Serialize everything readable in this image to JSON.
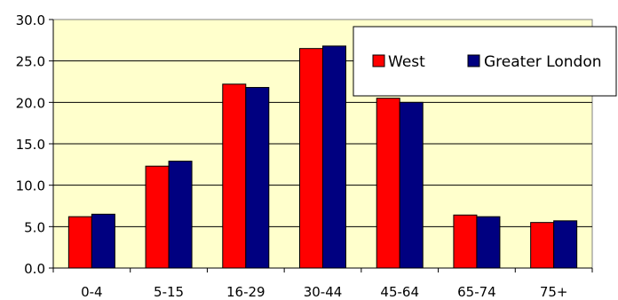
{
  "chart_data": {
    "type": "bar",
    "categories": [
      "0-4",
      "5-15",
      "16-29",
      "30-44",
      "45-64",
      "65-74",
      "75+"
    ],
    "series": [
      {
        "name": "West",
        "color": "#ff0000",
        "values": [
          6.2,
          12.3,
          22.2,
          26.5,
          20.5,
          6.4,
          5.5
        ]
      },
      {
        "name": "Greater London",
        "color": "#000080",
        "values": [
          6.5,
          12.9,
          21.8,
          26.8,
          20.0,
          6.2,
          5.7
        ]
      }
    ],
    "ylim": [
      0,
      30
    ],
    "yticks": [
      "0.0",
      "5.0",
      "10.0",
      "15.0",
      "20.0",
      "25.0",
      "30.0"
    ],
    "grid": true,
    "legend_position": "top-right",
    "plot_background": "#ffffcc"
  }
}
